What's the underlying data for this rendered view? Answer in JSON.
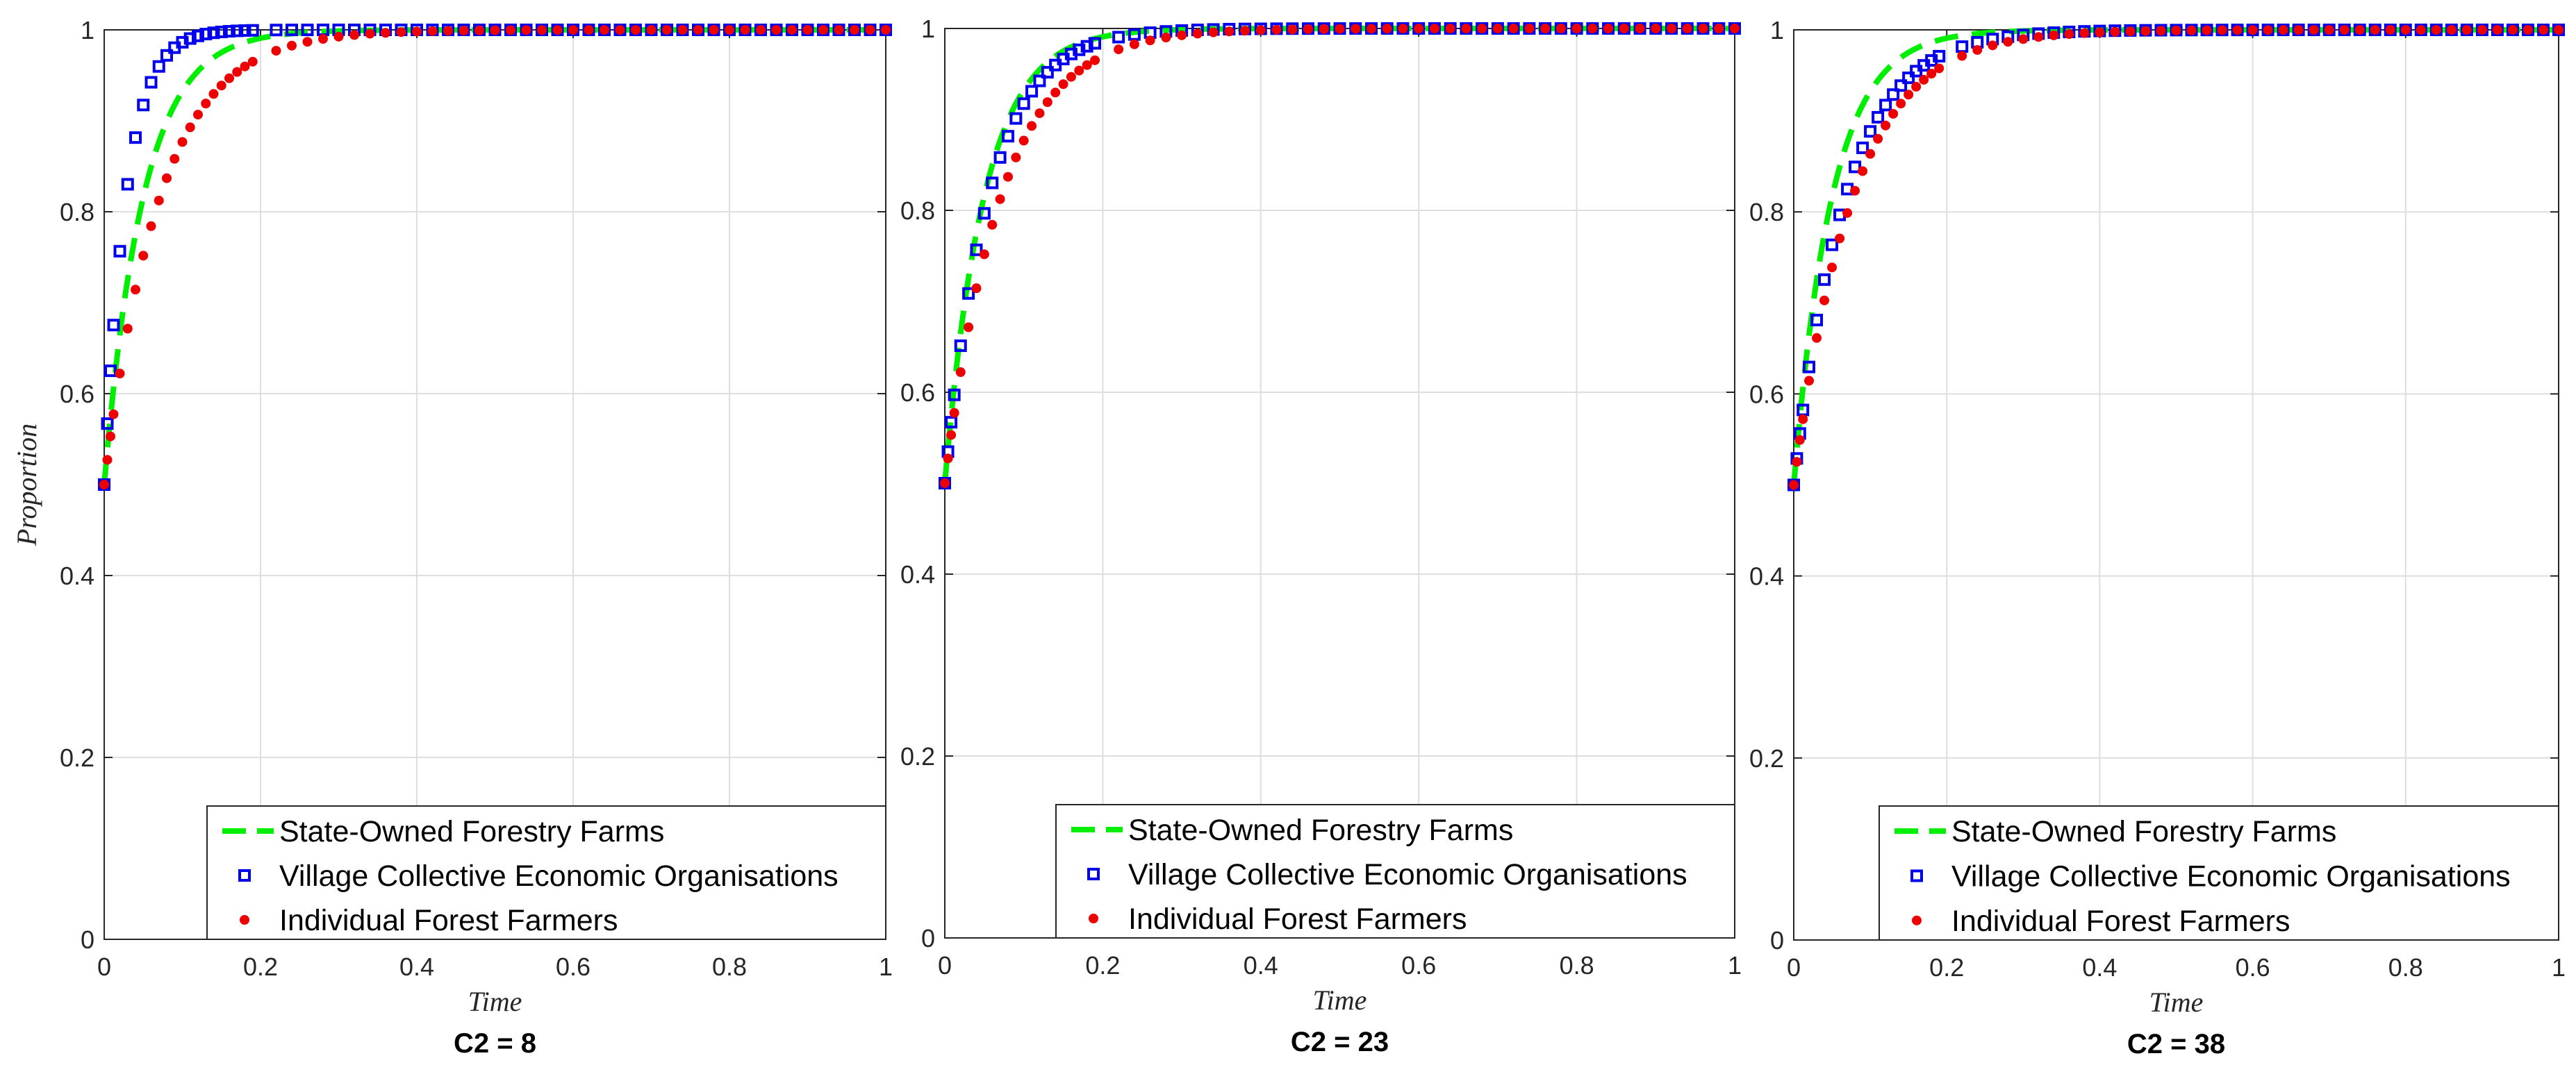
{
  "colors": {
    "state_owned": "#00ee00",
    "village": "#0000ee",
    "individual": "#ee0000",
    "grid": "#dedede",
    "axes": "#262626"
  },
  "ylabel": "Proportion",
  "chart_data": [
    {
      "type": "line",
      "title": "C2 = 8",
      "xlabel": "Time",
      "ylabel": "Proportion",
      "xlim": [
        0,
        1
      ],
      "ylim": [
        0,
        1
      ],
      "xticks": [
        "0",
        "0.2",
        "0.4",
        "0.6",
        "0.8",
        "1"
      ],
      "yticks": [
        "0",
        "0.2",
        "0.4",
        "0.6",
        "0.8",
        "1"
      ],
      "grid": true,
      "legend_position": "bottom-right",
      "series": [
        {
          "name": "State-Owned Forestry Farms",
          "style": "dashed-line",
          "start": 0.5,
          "rate": 20
        },
        {
          "name": "Village Collective Economic Organisations",
          "style": "square-markers",
          "start": 0.5,
          "rate": 36
        },
        {
          "name": "Individual Forest Farmers",
          "style": "dot-markers",
          "start": 0.5,
          "rate": 14
        }
      ]
    },
    {
      "type": "line",
      "title": "C2 = 23",
      "xlabel": "Time",
      "ylabel": "",
      "xlim": [
        0,
        1
      ],
      "ylim": [
        0,
        1
      ],
      "xticks": [
        "0",
        "0.2",
        "0.4",
        "0.6",
        "0.8",
        "1"
      ],
      "yticks": [
        "0",
        "0.2",
        "0.4",
        "0.6",
        "0.8",
        "1"
      ],
      "grid": true,
      "legend_position": "bottom-right",
      "series": [
        {
          "name": "State-Owned Forestry Farms",
          "style": "dashed-line",
          "start": 0.5,
          "rate": 20
        },
        {
          "name": "Village Collective Economic Organisations",
          "style": "square-markers",
          "start": 0.5,
          "rate": 18
        },
        {
          "name": "Individual Forest Farmers",
          "style": "dot-markers",
          "start": 0.5,
          "rate": 14
        }
      ]
    },
    {
      "type": "line",
      "title": "C2 = 38",
      "xlabel": "Time",
      "ylabel": "",
      "xlim": [
        0,
        1
      ],
      "ylim": [
        0,
        1
      ],
      "xticks": [
        "0",
        "0.2",
        "0.4",
        "0.6",
        "0.8",
        "1"
      ],
      "yticks": [
        "0",
        "0.2",
        "0.4",
        "0.6",
        "0.8",
        "1"
      ],
      "grid": true,
      "legend_position": "bottom-right",
      "series": [
        {
          "name": "State-Owned Forestry Farms",
          "style": "dashed-line",
          "start": 0.5,
          "rate": 20
        },
        {
          "name": "Village Collective Economic Organisations",
          "style": "square-markers",
          "start": 0.5,
          "rate": 15
        },
        {
          "name": "Individual Forest Farmers",
          "style": "dot-markers",
          "start": 0.5,
          "rate": 13
        }
      ]
    }
  ]
}
